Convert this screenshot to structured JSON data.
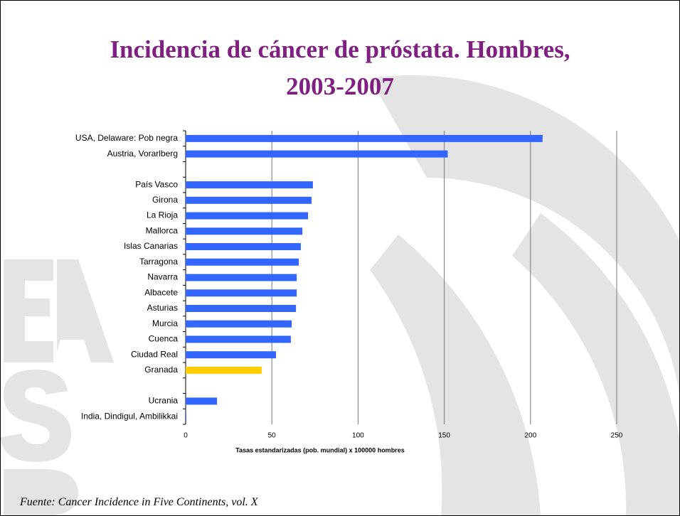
{
  "chart_data": {
    "type": "hbar",
    "title": "Incidencia de cáncer de próstata. Hombres, 2003-2007",
    "x_label": "Tasas estandarizadas (pob. mundial) x 100000 hombres",
    "source": "Fuente: Cancer Incidence in Five Continents, vol. X",
    "categories": [
      "USA, Delaware: Pob negra",
      "Austria, Vorarlberg",
      null,
      "País Vasco",
      "Girona",
      "La Rioja",
      "Mallorca",
      "Islas Canarias",
      "Tarragona",
      "Navarra",
      "Albacete",
      "Asturias",
      "Murcia",
      "Cuenca",
      "Ciudad Real",
      "Granada",
      null,
      "Ucrania",
      "India, Dindigul, Ambilikkai"
    ],
    "values": [
      207,
      152,
      null,
      73.8,
      73,
      71,
      67.7,
      66.8,
      65.6,
      64.4,
      64.4,
      64,
      61.5,
      61,
      52.4,
      44.1,
      null,
      18.2,
      0.4
    ],
    "colors": [
      "#3366ff",
      "#3366ff",
      null,
      "#3366ff",
      "#3366ff",
      "#3366ff",
      "#3366ff",
      "#3366ff",
      "#3366ff",
      "#3366ff",
      "#3366ff",
      "#3366ff",
      "#3366ff",
      "#3366ff",
      "#3366ff",
      "#ffcc00",
      null,
      "#3366ff",
      "#3366ff"
    ],
    "xlim": [
      0,
      250
    ],
    "xticks": [
      0,
      50,
      100,
      150,
      200,
      250
    ],
    "grid": true
  }
}
